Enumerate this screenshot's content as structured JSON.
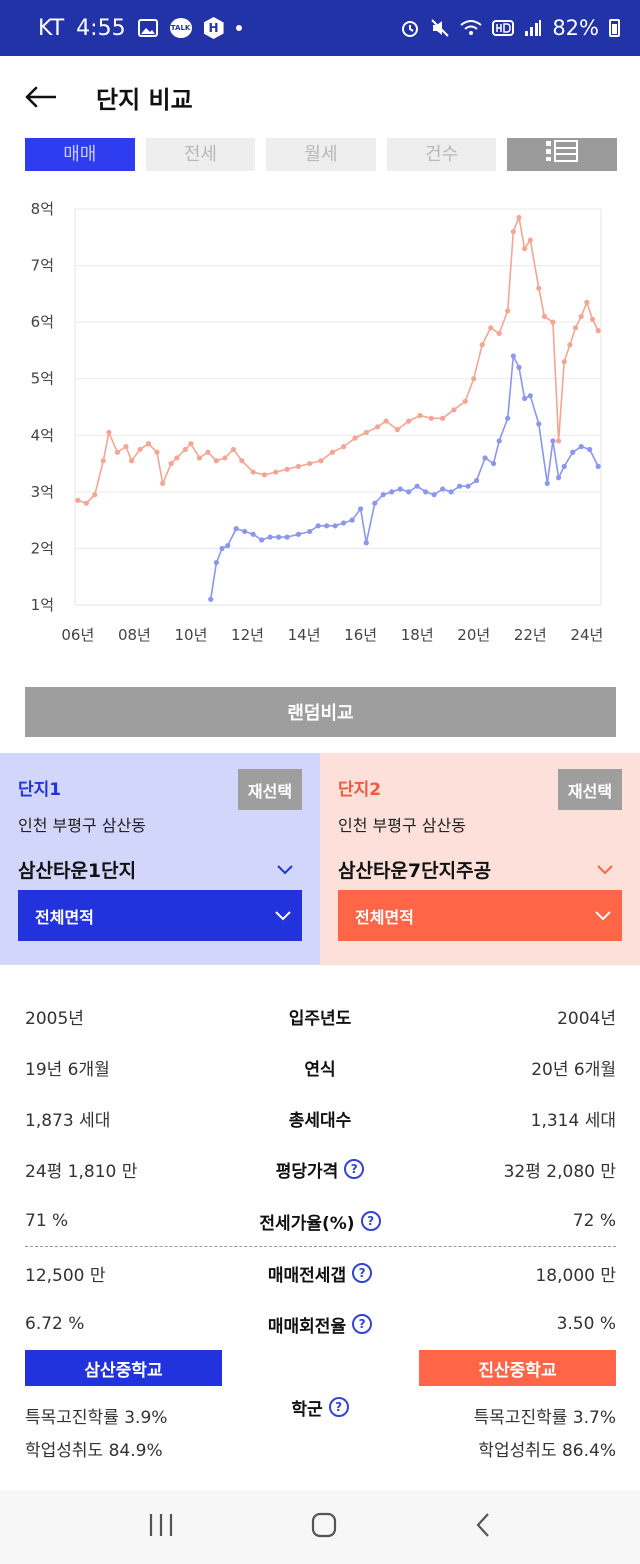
{
  "status_bar": {
    "carrier": "KT",
    "time": "4:55",
    "battery": "82%",
    "talk": "TALK",
    "h": "H"
  },
  "header": {
    "title": "단지 비교"
  },
  "tabs": [
    {
      "label": "매매",
      "active": true
    },
    {
      "label": "전세",
      "active": false
    },
    {
      "label": "월세",
      "active": false
    },
    {
      "label": "건수",
      "active": false
    }
  ],
  "chart_data": {
    "type": "line",
    "title": "",
    "xlabel": "",
    "ylabel": "",
    "ylim": [
      1,
      8
    ],
    "xlim": [
      2005.9,
      2024.5
    ],
    "y_ticks": [
      "1억",
      "2억",
      "3억",
      "4억",
      "5억",
      "6억",
      "7억",
      "8억"
    ],
    "x_ticks": [
      "06년",
      "08년",
      "10년",
      "12년",
      "14년",
      "16년",
      "18년",
      "20년",
      "22년",
      "24년"
    ],
    "grid": true,
    "series": [
      {
        "color": "#f4a693",
        "x": [
          2006.0,
          2006.3,
          2006.6,
          2006.9,
          2007.1,
          2007.4,
          2007.7,
          2007.9,
          2008.2,
          2008.5,
          2008.8,
          2009.0,
          2009.3,
          2009.5,
          2009.8,
          2010.0,
          2010.3,
          2010.6,
          2010.9,
          2011.2,
          2011.5,
          2011.8,
          2012.2,
          2012.6,
          2013.0,
          2013.4,
          2013.8,
          2014.2,
          2014.6,
          2015.0,
          2015.4,
          2015.8,
          2016.2,
          2016.6,
          2016.9,
          2017.3,
          2017.7,
          2018.1,
          2018.5,
          2018.9,
          2019.3,
          2019.7,
          2020.0,
          2020.3,
          2020.6,
          2020.9,
          2021.2,
          2021.4,
          2021.6,
          2021.8,
          2022.0,
          2022.3,
          2022.5,
          2022.8,
          2023.0,
          2023.2,
          2023.4,
          2023.6,
          2023.8,
          2024.0,
          2024.2,
          2024.4
        ],
        "values": [
          2.85,
          2.8,
          2.95,
          3.55,
          4.05,
          3.7,
          3.8,
          3.55,
          3.75,
          3.85,
          3.7,
          3.15,
          3.5,
          3.6,
          3.75,
          3.85,
          3.6,
          3.7,
          3.55,
          3.6,
          3.75,
          3.55,
          3.35,
          3.3,
          3.35,
          3.4,
          3.45,
          3.5,
          3.55,
          3.7,
          3.8,
          3.95,
          4.05,
          4.15,
          4.25,
          4.1,
          4.25,
          4.35,
          4.3,
          4.3,
          4.45,
          4.6,
          5.0,
          5.6,
          5.9,
          5.8,
          6.2,
          7.6,
          7.85,
          7.3,
          7.45,
          6.6,
          6.1,
          6.0,
          3.9,
          5.3,
          5.6,
          5.9,
          6.1,
          6.35,
          6.05,
          5.85
        ]
      },
      {
        "color": "#8b97ef",
        "x": [
          2010.7,
          2010.9,
          2011.1,
          2011.3,
          2011.6,
          2011.9,
          2012.2,
          2012.5,
          2012.8,
          2013.1,
          2013.4,
          2013.8,
          2014.2,
          2014.5,
          2014.8,
          2015.1,
          2015.4,
          2015.7,
          2016.0,
          2016.2,
          2016.5,
          2016.8,
          2017.1,
          2017.4,
          2017.7,
          2018.0,
          2018.3,
          2018.6,
          2018.9,
          2019.2,
          2019.5,
          2019.8,
          2020.1,
          2020.4,
          2020.7,
          2020.9,
          2021.2,
          2021.4,
          2021.6,
          2021.8,
          2022.0,
          2022.3,
          2022.6,
          2022.8,
          2023.0,
          2023.2,
          2023.5,
          2023.8,
          2024.1,
          2024.4
        ],
        "values": [
          1.1,
          1.75,
          2.0,
          2.05,
          2.35,
          2.3,
          2.25,
          2.15,
          2.2,
          2.2,
          2.2,
          2.25,
          2.3,
          2.4,
          2.4,
          2.4,
          2.45,
          2.5,
          2.7,
          2.1,
          2.8,
          2.95,
          3.0,
          3.05,
          3.0,
          3.1,
          3.0,
          2.95,
          3.05,
          3.0,
          3.1,
          3.1,
          3.2,
          3.6,
          3.5,
          3.9,
          4.3,
          5.4,
          5.2,
          4.65,
          4.7,
          4.2,
          3.15,
          3.9,
          3.25,
          3.45,
          3.7,
          3.8,
          3.75,
          3.45
        ]
      }
    ]
  },
  "random_compare": "랜덤비교",
  "complexes": [
    {
      "label": "단지1",
      "reselect": "재선택",
      "location": "인천 부평구 삼산동",
      "name": "삼산타운1단지",
      "area": "전체면적"
    },
    {
      "label": "단지2",
      "reselect": "재선택",
      "location": "인천 부평구 삼산동",
      "name": "삼산타운7단지주공",
      "area": "전체면적"
    }
  ],
  "compare_rows": [
    {
      "left": "2005년",
      "label": "입주년도",
      "right": "2004년",
      "help": false
    },
    {
      "left": "19년 6개월",
      "label": "연식",
      "right": "20년 6개월",
      "help": false
    },
    {
      "left": "1,873 세대",
      "label": "총세대수",
      "right": "1,314 세대",
      "help": false
    },
    {
      "left": "24평 1,810 만",
      "label": "평당가격",
      "right": "32평 2,080 만",
      "help": true
    },
    {
      "left": "71 %",
      "label": "전세가율(%)",
      "right": "72 %",
      "help": true
    },
    {
      "left": "12,500 만",
      "label": "매매전세갭",
      "right": "18,000 만",
      "help": true
    },
    {
      "left": "6.72 %",
      "label": "매매회전율",
      "right": "3.50 %",
      "help": true
    }
  ],
  "school": {
    "label": "학군",
    "left": {
      "name": "삼산중학교",
      "special": "특목고진학률 3.9%",
      "achievement": "학업성취도 84.9%"
    },
    "right": {
      "name": "진산중학교",
      "special": "특목고진학률 3.7%",
      "achievement": "학업성취도 86.4%"
    }
  },
  "icons": {
    "back": "back-arrow-icon",
    "help": "?"
  }
}
